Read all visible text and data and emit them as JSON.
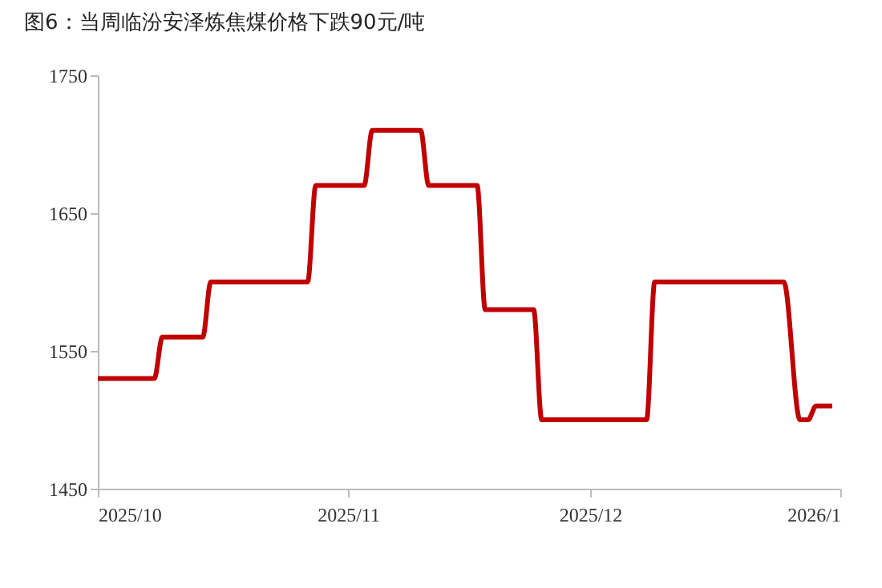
{
  "chart_data": {
    "type": "line",
    "title": "图6：当周临汾安泽炼焦煤价格下跌90元/吨",
    "x": [
      "2025-10-01",
      "2025-10-08",
      "2025-10-09",
      "2025-10-14",
      "2025-10-15",
      "2025-10-27",
      "2025-10-28",
      "2025-11-03",
      "2025-11-04",
      "2025-11-10",
      "2025-11-11",
      "2025-11-17",
      "2025-11-18",
      "2025-11-24",
      "2025-11-25",
      "2025-12-08",
      "2025-12-09",
      "2025-12-25",
      "2025-12-27",
      "2025-12-28",
      "2025-12-29",
      "2025-12-31"
    ],
    "series": [
      {
        "color": "#c00000",
        "values": [
          1530,
          1530,
          1560,
          1560,
          1600,
          1600,
          1670,
          1670,
          1710,
          1710,
          1670,
          1670,
          1580,
          1580,
          1500,
          1500,
          1600,
          1600,
          1500,
          1500,
          1510,
          1510
        ]
      }
    ],
    "xlim": [
      "2025-10-01",
      "2026-01-01"
    ],
    "xticks": [
      {
        "value": "2025-10-01",
        "label": "2025/10"
      },
      {
        "value": "2025-11-01",
        "label": "2025/11"
      },
      {
        "value": "2025-12-01",
        "label": "2025/12"
      },
      {
        "value": "2026-01-01",
        "label": "2026/1"
      }
    ],
    "ylim": [
      1450,
      1750
    ],
    "yticks": [
      1450,
      1550,
      1650,
      1750
    ],
    "grid": false,
    "legend": false,
    "marker": "none",
    "line_style": "solid"
  }
}
